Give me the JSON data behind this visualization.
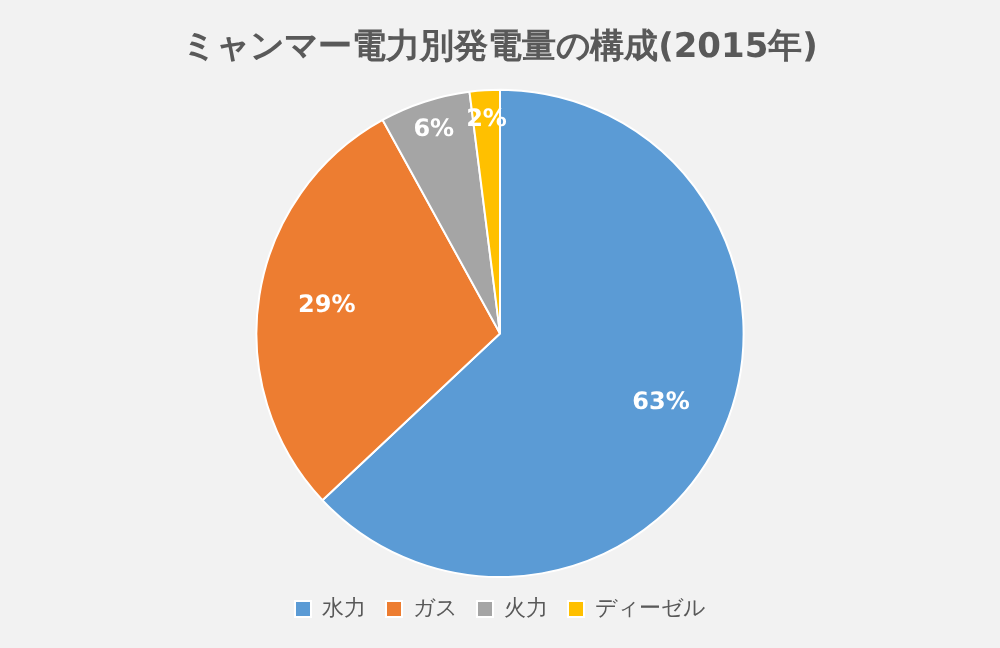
{
  "chart_data": {
    "type": "pie",
    "title": "ミャンマー電力別発電量の構成(2015年)",
    "categories": [
      "水力",
      "ガス",
      "火力",
      "ディーゼル"
    ],
    "values": [
      63,
      29,
      6,
      2
    ],
    "value_labels": [
      "63%",
      "29%",
      "6%",
      "2%"
    ],
    "colors": [
      "#5b9bd5",
      "#ed7d31",
      "#a5a5a5",
      "#ffc000"
    ],
    "legend": "bottom"
  }
}
